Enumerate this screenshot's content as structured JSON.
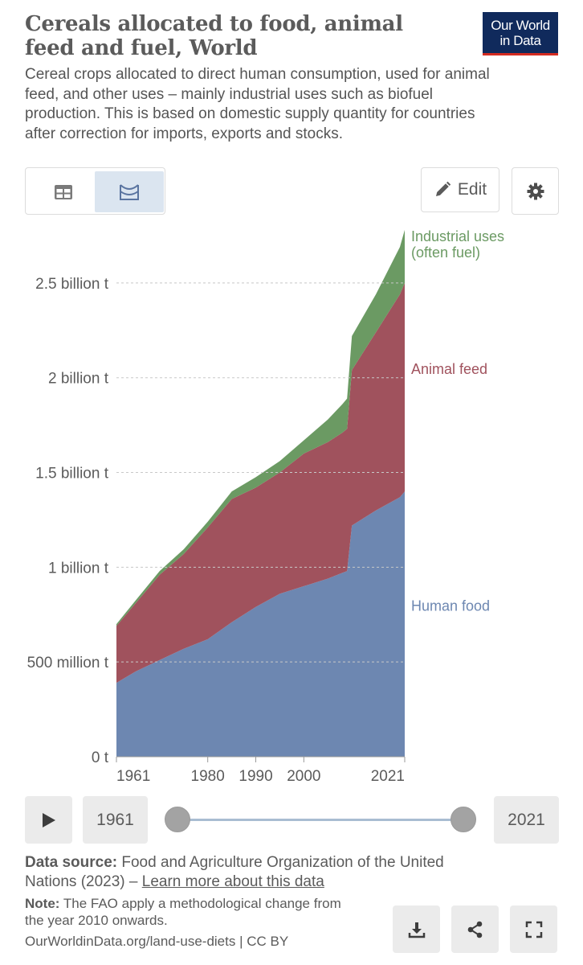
{
  "header": {
    "title": "Cereals allocated to food, animal feed and fuel, World",
    "subtitle": "Cereal crops allocated to direct human consumption, used for animal feed, and other uses – mainly industrial uses such as biofuel production. This is based on domestic supply quantity for countries after correction for imports, exports and stocks.",
    "logo_line1": "Our World",
    "logo_line2": "in Data"
  },
  "toolbar": {
    "edit_label": "Edit"
  },
  "icons": {
    "table_tab": "table-icon",
    "chart_tab": "area-chart-icon",
    "edit": "pencil-icon",
    "settings": "gear-icon",
    "play": "play-icon",
    "download": "download-icon",
    "share": "share-icon",
    "fullscreen": "fullscreen-icon"
  },
  "colors": {
    "human_food": "#6d87b1",
    "animal_feed": "#a0525d",
    "industrial": "#6b9a63"
  },
  "chart_data": {
    "type": "area",
    "stacked": true,
    "title": "Cereals allocated to food, animal feed and fuel, World",
    "xlim": [
      1961,
      2021
    ],
    "ylim": [
      0,
      2750000000
    ],
    "ytick_values": [
      0,
      500000000,
      1000000000,
      1500000000,
      2000000000,
      2500000000
    ],
    "yticks": [
      "0 t",
      "500 million t",
      "1 billion t",
      "1.5 billion t",
      "2 billion t",
      "2.5 billion t"
    ],
    "xtick_values": [
      1961,
      1980,
      1990,
      2000,
      2021
    ],
    "xticks": [
      "1961",
      "1980",
      "1990",
      "2000",
      "2021"
    ],
    "grid": "horizontal dashed",
    "legend": "inline-right",
    "x": [
      1961,
      1965,
      1970,
      1975,
      1980,
      1985,
      1990,
      1995,
      2000,
      2005,
      2008,
      2009,
      2010,
      2015,
      2020,
      2021
    ],
    "series": [
      {
        "name": "Human food",
        "color": "#6d87b1",
        "values": [
          390000000,
          450000000,
          510000000,
          570000000,
          620000000,
          710000000,
          790000000,
          860000000,
          900000000,
          940000000,
          970000000,
          980000000,
          1220000000,
          1300000000,
          1370000000,
          1400000000
        ]
      },
      {
        "name": "Animal feed",
        "color": "#a0525d",
        "values": [
          300000000,
          360000000,
          450000000,
          500000000,
          590000000,
          650000000,
          630000000,
          640000000,
          700000000,
          720000000,
          740000000,
          750000000,
          820000000,
          940000000,
          1070000000,
          1100000000
        ]
      },
      {
        "name": "Industrial uses (often fuel)",
        "label_lines": [
          "Industrial uses",
          "(often fuel)"
        ],
        "color": "#6b9a63",
        "values": [
          10000000,
          15000000,
          20000000,
          25000000,
          30000000,
          40000000,
          55000000,
          60000000,
          70000000,
          120000000,
          150000000,
          160000000,
          180000000,
          200000000,
          250000000,
          280000000
        ]
      }
    ]
  },
  "timeline": {
    "start_year": "1961",
    "end_year": "2021"
  },
  "footer": {
    "source_label": "Data source:",
    "source_text": " Food and Agriculture Organization of the United Nations (2023) – ",
    "source_link": "Learn more about this data",
    "note_label": "Note:",
    "note_text": " The FAO apply a methodological change from the year 2010 onwards.",
    "site_text": "OurWorldinData.org/land-use-diets | CC BY"
  }
}
